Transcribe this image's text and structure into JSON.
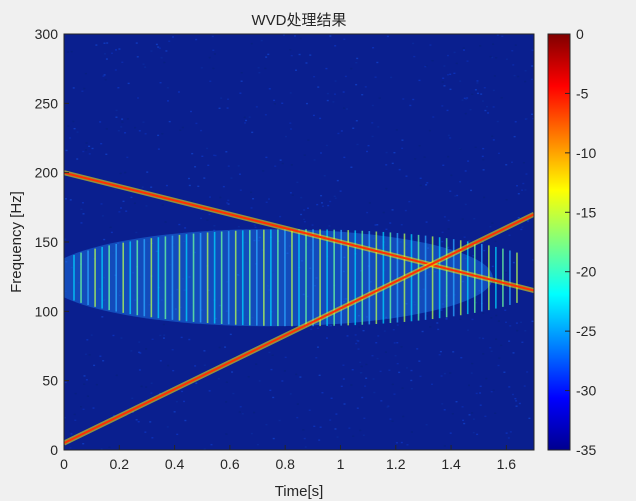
{
  "chart_data": {
    "type": "heatmap",
    "title": "WVD处理结果",
    "xlabel": "Time[s]",
    "ylabel": "Frequency [Hz]",
    "xlim": [
      0,
      1.7
    ],
    "ylim": [
      0,
      300
    ],
    "xticks": [
      "0",
      "0.2",
      "0.4",
      "0.6",
      "0.8",
      "1",
      "1.2",
      "1.4",
      "1.6"
    ],
    "yticks": [
      "0",
      "50",
      "100",
      "150",
      "200",
      "250",
      "300"
    ],
    "colorbar": {
      "colormap": "jet",
      "range": [
        -35,
        0
      ],
      "ticks": [
        "0",
        "-5",
        "-10",
        "-15",
        "-20",
        "-25",
        "-30",
        "-35"
      ]
    },
    "components": [
      {
        "description": "descending linear chirp",
        "t": [
          0,
          1.7
        ],
        "f": [
          200,
          115
        ]
      },
      {
        "description": "ascending linear chirp",
        "t": [
          0,
          1.7
        ],
        "f": [
          5,
          170
        ]
      }
    ],
    "cross_term": {
      "center_time": 0.85,
      "center_freq": 130,
      "extent_time": [
        0,
        1.7
      ],
      "extent_freq": [
        95,
        165
      ]
    },
    "background_color": "#0a1f8f"
  }
}
